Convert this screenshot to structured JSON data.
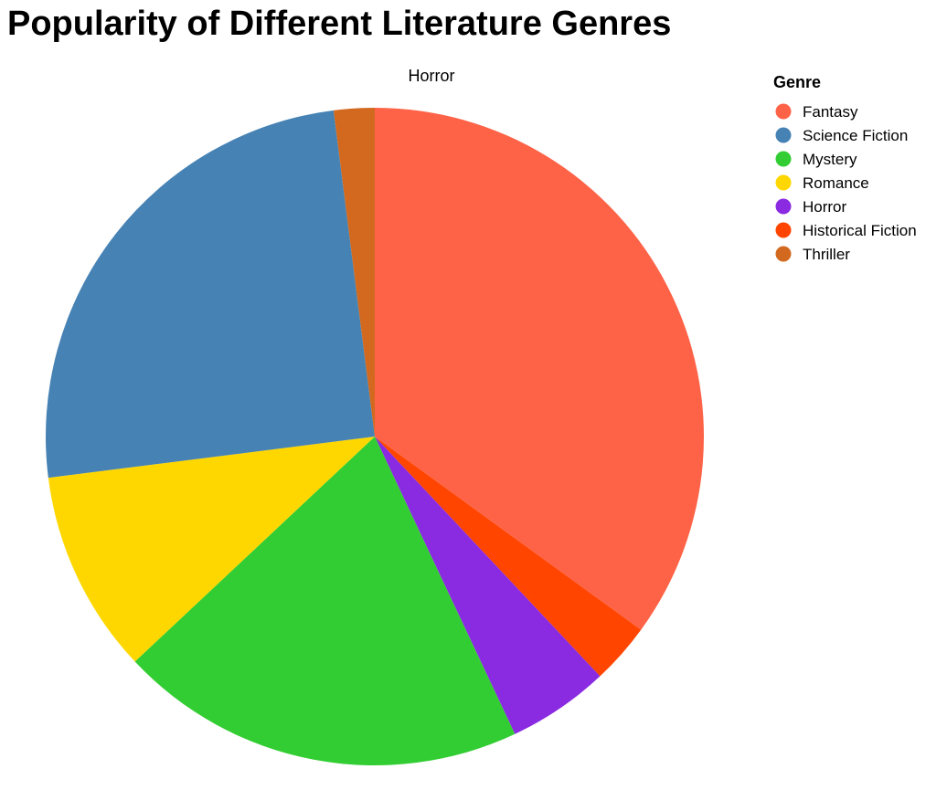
{
  "chart_data": {
    "type": "pie",
    "title": "Popularity of Different Literature Genres",
    "facet_label": "Horror",
    "legend_title": "Genre",
    "legend_position": "right",
    "slices": [
      {
        "label": "Fantasy",
        "value": 35,
        "color": "#FF6347"
      },
      {
        "label": "Historical Fiction",
        "value": 3,
        "color": "#FF4500"
      },
      {
        "label": "Horror",
        "value": 5,
        "color": "#8A2BE2"
      },
      {
        "label": "Mystery",
        "value": 20,
        "color": "#32CD32"
      },
      {
        "label": "Romance",
        "value": 10,
        "color": "#FFD700"
      },
      {
        "label": "Science Fiction",
        "value": 25,
        "color": "#4682B4"
      },
      {
        "label": "Thriller",
        "value": 2,
        "color": "#D2691E"
      }
    ],
    "legend_order": [
      "Fantasy",
      "Science Fiction",
      "Mystery",
      "Romance",
      "Horror",
      "Historical Fiction",
      "Thriller"
    ]
  }
}
